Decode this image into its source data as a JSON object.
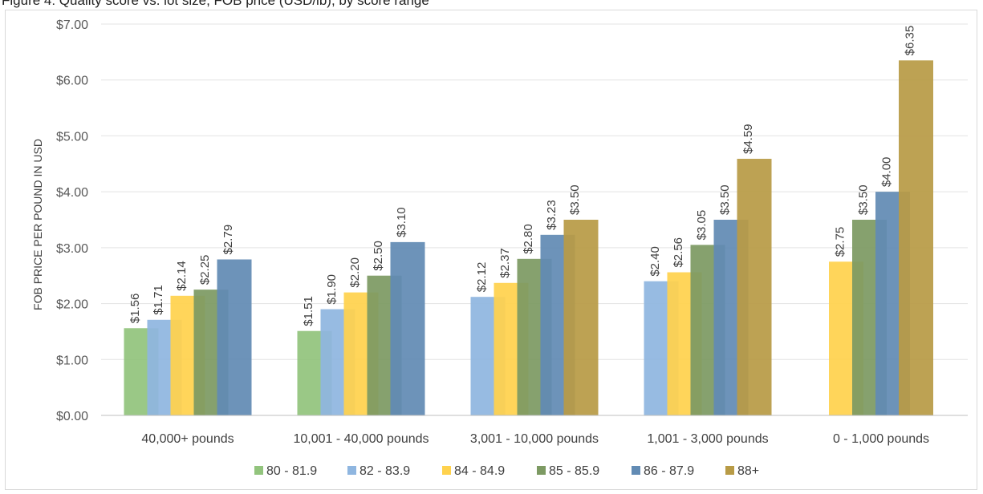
{
  "header": {
    "title": "Figure 4: Quality score vs. lot size, FOB price (USD/lb), by score range"
  },
  "chart_data": {
    "type": "bar",
    "title": "",
    "xlabel": "",
    "ylabel": "FOB PRICE PER POUND IN USD",
    "ylim": [
      0,
      7
    ],
    "ytick_step": 1,
    "y_tick_labels": [
      "$0.00",
      "$1.00",
      "$2.00",
      "$3.00",
      "$4.00",
      "$5.00",
      "$6.00",
      "$7.00"
    ],
    "grid": true,
    "legend_position": "bottom",
    "categories": [
      "40,000+ pounds",
      "10,001 - 40,000 pounds",
      "3,001 - 10,000 pounds",
      "1,001 - 3,000 pounds",
      "0 - 1,000 pounds"
    ],
    "series": [
      {
        "name": "80 - 81.9",
        "color": "#92c47d",
        "values": [
          1.56,
          1.51,
          null,
          null,
          null
        ],
        "labels": [
          "$1.56",
          "$1.51",
          null,
          null,
          null
        ]
      },
      {
        "name": "82 - 83.9",
        "color": "#8fb6e0",
        "values": [
          1.71,
          1.9,
          2.12,
          2.4,
          null
        ],
        "labels": [
          "$1.71",
          "$1.90",
          "$2.12",
          "$2.40",
          null
        ]
      },
      {
        "name": "84 - 84.9",
        "color": "#ffd24d",
        "values": [
          2.14,
          2.2,
          2.37,
          2.56,
          2.75
        ],
        "labels": [
          "$2.14",
          "$2.20",
          "$2.37",
          "$2.56",
          "$2.75"
        ]
      },
      {
        "name": "85 - 85.9",
        "color": "#7d9a63",
        "values": [
          2.25,
          2.5,
          2.8,
          3.05,
          3.5
        ],
        "labels": [
          "$2.25",
          "$2.50",
          "$2.80",
          "$3.05",
          "$3.50"
        ]
      },
      {
        "name": "86 - 87.9",
        "color": "#628bb4",
        "values": [
          2.79,
          3.1,
          3.23,
          3.5,
          4.0
        ],
        "labels": [
          "$2.79",
          "$3.10",
          "$3.23",
          "$3.50",
          "$4.00"
        ]
      },
      {
        "name": "88+",
        "color": "#b89b46",
        "values": [
          null,
          null,
          3.5,
          4.59,
          6.35
        ],
        "labels": [
          null,
          null,
          "$3.50",
          "$4.59",
          "$6.35"
        ]
      }
    ]
  }
}
